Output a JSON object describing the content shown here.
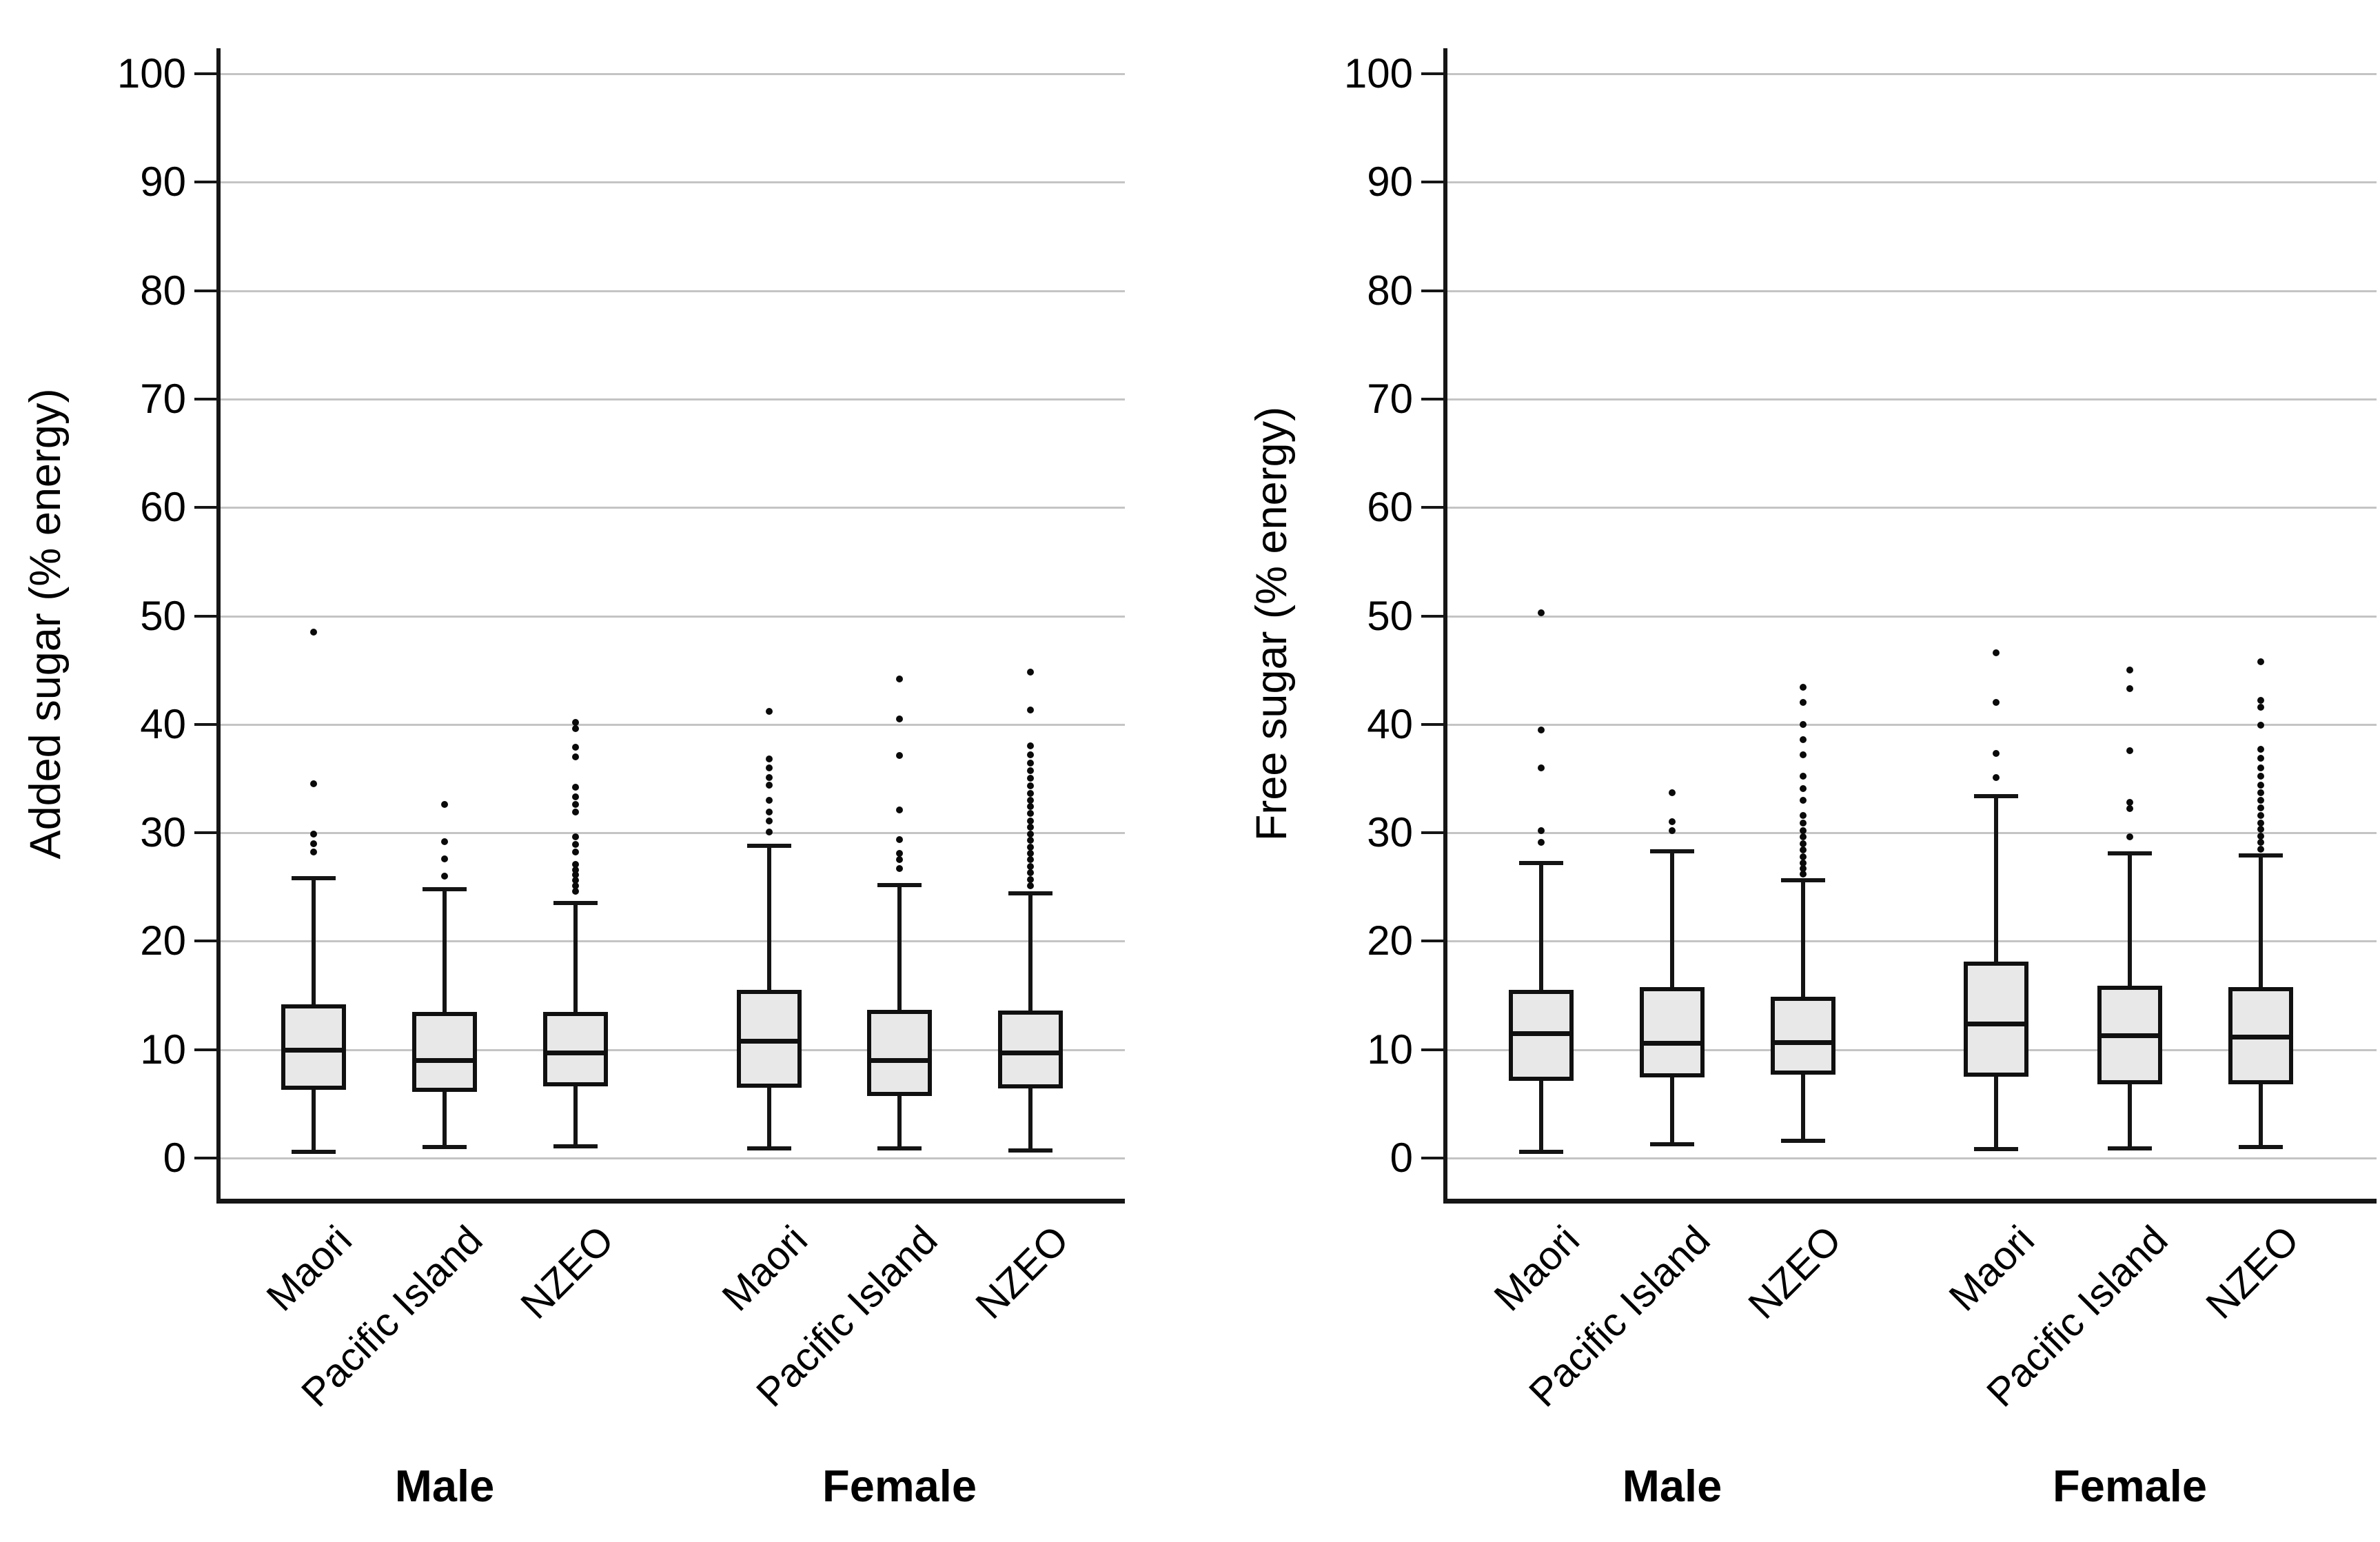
{
  "colors": {
    "background": "#ffffff",
    "box_fill": "#e8e8e8",
    "line": "#141414",
    "gridline": "#c4c4c4",
    "text": "#000000"
  },
  "chart_data": [
    {
      "type": "box",
      "title": "",
      "ylabel": "Added sugar (% energy)",
      "xlabel": "",
      "ylim": [
        0,
        100
      ],
      "yticks": [
        "0",
        "10",
        "20",
        "30",
        "40",
        "50",
        "60",
        "70",
        "80",
        "90",
        "100"
      ],
      "grid": "horizontal",
      "legend": "none",
      "groups": [
        "Male",
        "Female"
      ],
      "categories": [
        "Maori",
        "Pacific Island",
        "NZEO",
        "Maori",
        "Pacific Island",
        "NZEO"
      ],
      "boxes": [
        {
          "group": "Male",
          "label": "Maori",
          "whislo": 0.6,
          "q1": 6.5,
          "med": 10.0,
          "q3": 14.0,
          "whishi": 25.8,
          "outliers": [
            28.2,
            29.0,
            29.9,
            34.5,
            48.5
          ]
        },
        {
          "group": "Male",
          "label": "Pacific Island",
          "whislo": 1.0,
          "q1": 6.3,
          "med": 9.0,
          "q3": 13.3,
          "whishi": 24.8,
          "outliers": [
            26.0,
            27.6,
            29.2,
            32.6
          ]
        },
        {
          "group": "Male",
          "label": "NZEO",
          "whislo": 1.1,
          "q1": 6.8,
          "med": 9.7,
          "q3": 13.3,
          "whishi": 23.5,
          "outliers": [
            24.6,
            25.1,
            25.6,
            26.1,
            26.6,
            27.1,
            28.2,
            28.9,
            29.6,
            31.9,
            32.6,
            33.3,
            34.2,
            37.0,
            37.9,
            39.6,
            40.2
          ]
        },
        {
          "group": "Female",
          "label": "Maori",
          "whislo": 0.9,
          "q1": 6.7,
          "med": 10.8,
          "q3": 15.3,
          "whishi": 28.8,
          "outliers": [
            30.1,
            31.1,
            31.9,
            33.0,
            34.4,
            35.1,
            36.0,
            36.8,
            41.2
          ]
        },
        {
          "group": "Female",
          "label": "Pacific Island",
          "whislo": 0.9,
          "q1": 5.9,
          "med": 9.0,
          "q3": 13.5,
          "whishi": 25.2,
          "outliers": [
            26.7,
            27.5,
            28.1,
            29.4,
            32.1,
            37.1,
            40.5,
            44.2
          ]
        },
        {
          "group": "Female",
          "label": "NZEO",
          "whislo": 0.7,
          "q1": 6.6,
          "med": 9.7,
          "q3": 13.4,
          "whishi": 24.4,
          "outliers": [
            25.1,
            25.7,
            26.3,
            26.9,
            27.5,
            28.1,
            28.7,
            29.3,
            29.9,
            30.5,
            31.1,
            31.8,
            32.4,
            33.0,
            33.6,
            34.3,
            35.0,
            35.7,
            36.4,
            37.2,
            38.0,
            41.3,
            44.8
          ]
        }
      ]
    },
    {
      "type": "box",
      "title": "",
      "ylabel": "Free sugar (% energy)",
      "xlabel": "",
      "ylim": [
        0,
        100
      ],
      "yticks": [
        "0",
        "10",
        "20",
        "30",
        "40",
        "50",
        "60",
        "70",
        "80",
        "90",
        "100"
      ],
      "grid": "horizontal",
      "legend": "none",
      "groups": [
        "Male",
        "Female"
      ],
      "categories": [
        "Maori",
        "Pacific Island",
        "NZEO",
        "Maori",
        "Pacific Island",
        "NZEO"
      ],
      "boxes": [
        {
          "group": "Male",
          "label": "Maori",
          "whislo": 0.6,
          "q1": 7.3,
          "med": 11.5,
          "q3": 15.3,
          "whishi": 27.2,
          "outliers": [
            29.1,
            30.2,
            36.0,
            39.5,
            50.3
          ]
        },
        {
          "group": "Male",
          "label": "Pacific Island",
          "whislo": 1.3,
          "q1": 7.6,
          "med": 10.6,
          "q3": 15.6,
          "whishi": 28.3,
          "outliers": [
            30.2,
            31.0,
            33.7
          ]
        },
        {
          "group": "Male",
          "label": "NZEO",
          "whislo": 1.6,
          "q1": 7.9,
          "med": 10.7,
          "q3": 14.7,
          "whishi": 25.6,
          "outliers": [
            26.2,
            26.7,
            27.2,
            27.8,
            28.4,
            29.0,
            29.6,
            30.2,
            30.9,
            31.6,
            33.0,
            34.1,
            35.2,
            37.2,
            38.6,
            40.0,
            42.0,
            43.4
          ]
        },
        {
          "group": "Female",
          "label": "Maori",
          "whislo": 0.8,
          "q1": 7.7,
          "med": 12.4,
          "q3": 17.9,
          "whishi": 33.4,
          "outliers": [
            35.1,
            37.3,
            42.0,
            46.6
          ]
        },
        {
          "group": "Female",
          "label": "Pacific Island",
          "whislo": 0.9,
          "q1": 7.0,
          "med": 11.3,
          "q3": 15.7,
          "whishi": 28.1,
          "outliers": [
            29.6,
            32.2,
            32.8,
            37.6,
            43.3,
            45.0
          ]
        },
        {
          "group": "Female",
          "label": "NZEO",
          "whislo": 1.0,
          "q1": 7.0,
          "med": 11.2,
          "q3": 15.6,
          "whishi": 27.9,
          "outliers": [
            28.5,
            29.1,
            29.7,
            30.3,
            30.9,
            31.6,
            32.3,
            33.0,
            33.7,
            34.4,
            35.2,
            36.0,
            36.9,
            37.7,
            39.9,
            41.6,
            42.2,
            45.8
          ]
        }
      ]
    }
  ]
}
